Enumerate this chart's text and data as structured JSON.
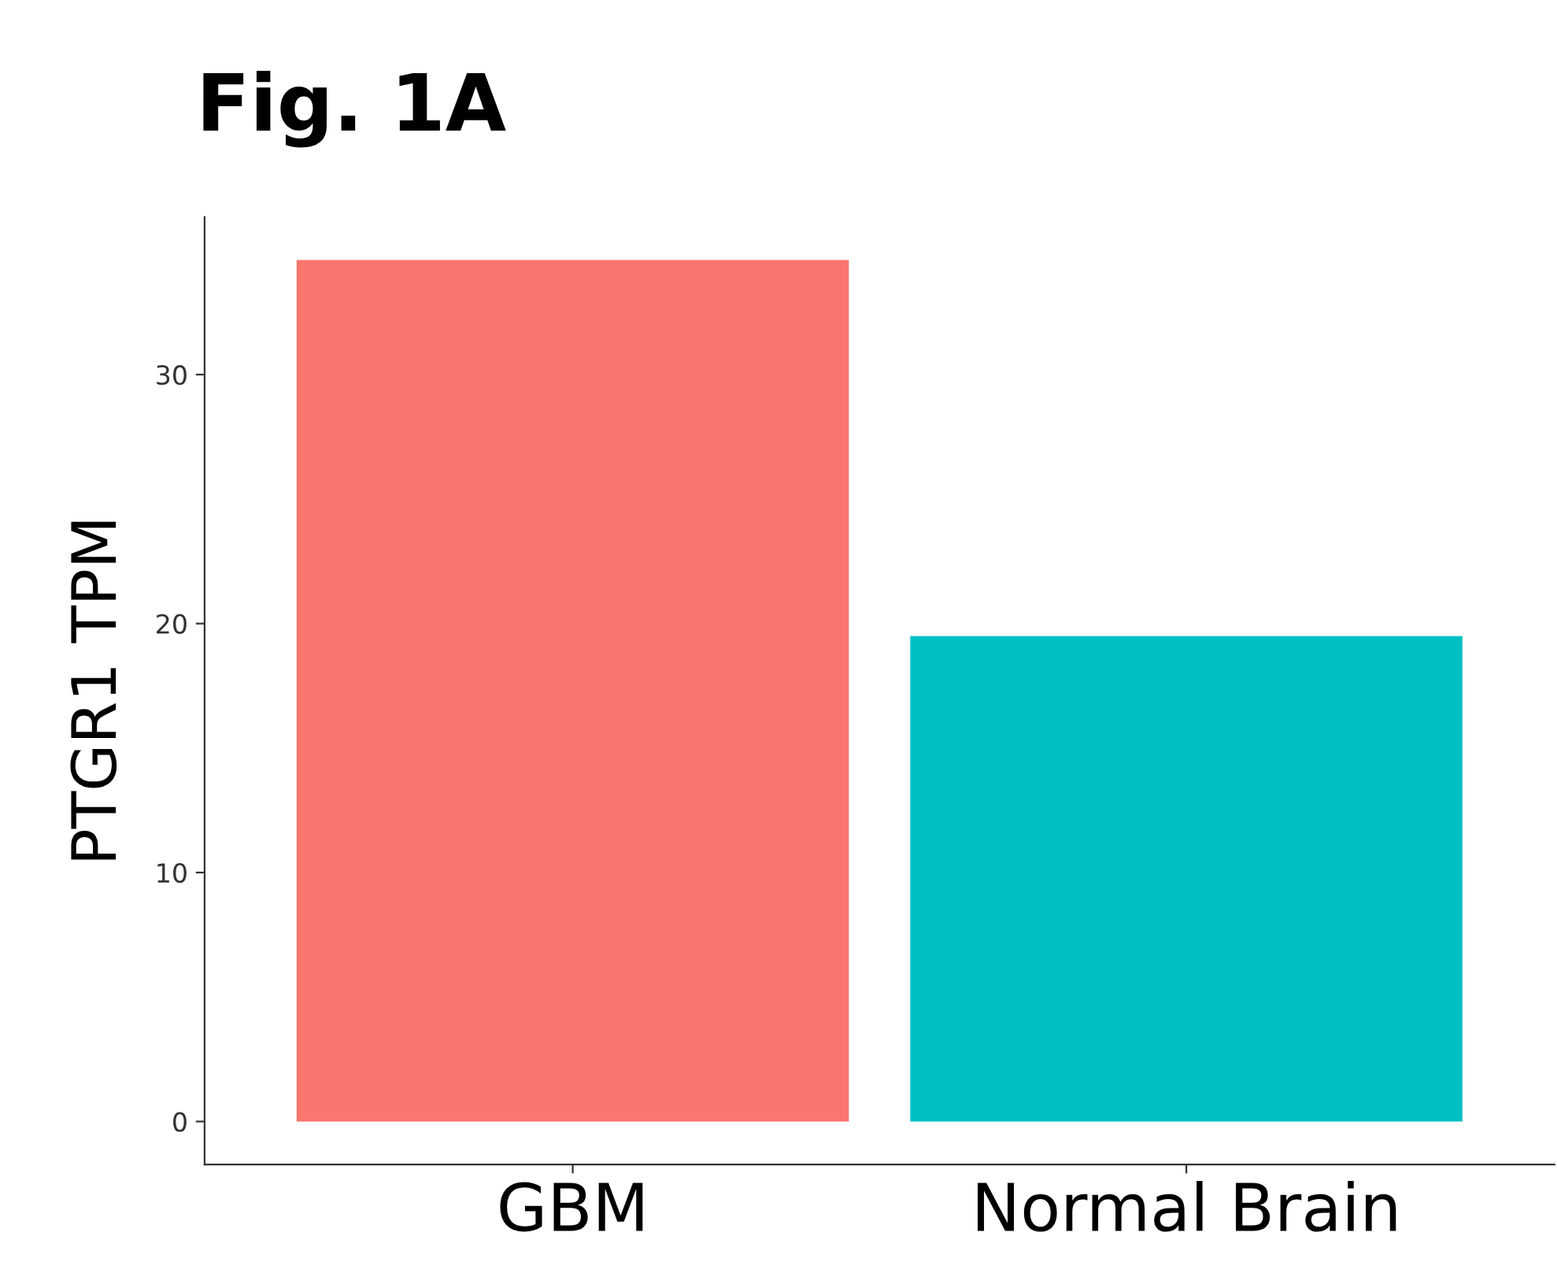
{
  "chart_data": {
    "type": "bar",
    "title": "Fig. 1A",
    "ylabel": "PTGR1 TPM",
    "categories": [
      "GBM",
      "Normal Brain"
    ],
    "values": [
      34.6,
      19.5
    ],
    "colors": [
      "#f8766d",
      "#00bfc4"
    ],
    "ylim": [
      -1.73,
      36.33
    ],
    "yticks": [
      0,
      10,
      20,
      30
    ],
    "grid": false,
    "legend": false
  }
}
